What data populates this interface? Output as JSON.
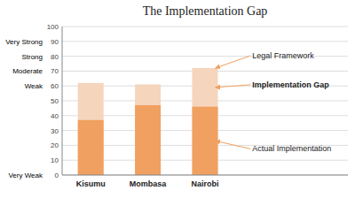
{
  "chart_data": {
    "type": "bar",
    "title": "The Implementation Gap",
    "categories": [
      "Kisumu",
      "Mombasa",
      "Nairobi"
    ],
    "series": [
      {
        "name": "Legal Framework",
        "color": "#f5d5bc",
        "values": [
          62,
          61,
          72
        ]
      },
      {
        "name": "Actual Implementation",
        "color": "#f0a060",
        "values": [
          37,
          47,
          46
        ]
      }
    ],
    "ylim": [
      0,
      100
    ],
    "yticks": [
      0,
      10,
      20,
      30,
      40,
      50,
      60,
      70,
      80,
      90,
      100
    ],
    "grid": true,
    "annotations": [
      {
        "text": "Very Weak",
        "y": 0
      },
      {
        "text": "Weak",
        "y": 60
      },
      {
        "text": "Moderate",
        "y": 70
      },
      {
        "text": "Strong",
        "y": 80
      },
      {
        "text": "Very Strong",
        "y": 90
      },
      {
        "text": "Implementation Gap",
        "x": "Nairobi",
        "y": 59
      }
    ]
  }
}
